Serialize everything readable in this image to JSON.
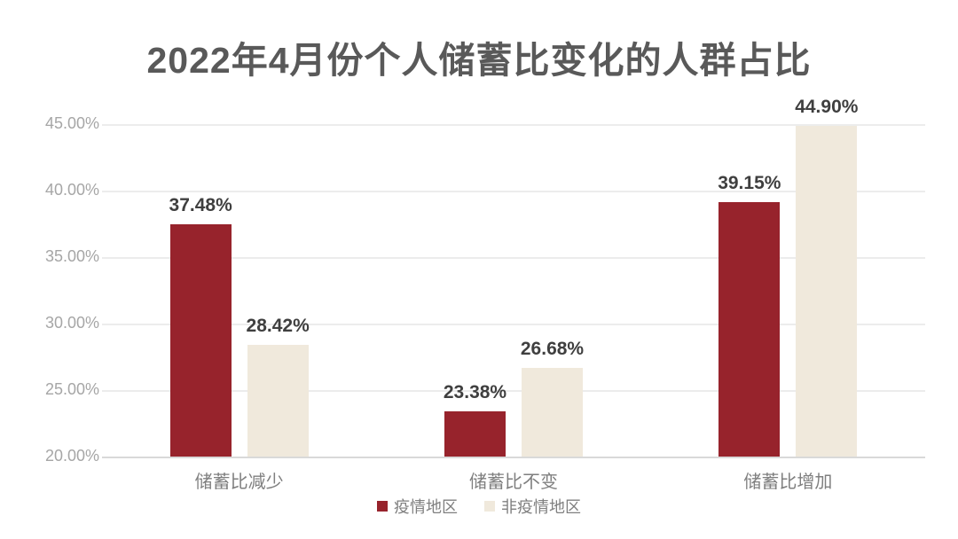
{
  "title": "2022年4月份个人储蓄比变化的人群占比",
  "colors": {
    "title_text": "#595959",
    "series_epidemic": "#97232C",
    "series_non_epidemic": "#F0E9DC",
    "data_label_text": "#3f3f3f",
    "axis_tick_text": "#a6a6a6",
    "category_text": "#7f7f7f",
    "gridline": "#ececec",
    "axis_line": "#d9d9d9",
    "background": "#ffffff"
  },
  "chart_data": {
    "type": "bar",
    "title": "2022年4月份个人储蓄比变化的人群占比",
    "categories": [
      "储蓄比减少",
      "储蓄比不变",
      "储蓄比增加"
    ],
    "series": [
      {
        "name": "疫情地区",
        "color": "#97232C",
        "values": [
          37.48,
          23.38,
          39.15
        ],
        "labels": [
          "37.48%",
          "23.38%",
          "39.15%"
        ]
      },
      {
        "name": "非疫情地区",
        "color": "#F0E9DC",
        "values": [
          28.42,
          26.68,
          44.9
        ],
        "labels": [
          "28.42%",
          "26.68%",
          "44.90%"
        ]
      }
    ],
    "xlabel": "",
    "ylabel": "",
    "y_axis": {
      "min": 20,
      "max": 45,
      "step": 5,
      "tick_values": [
        20,
        25,
        30,
        35,
        40,
        45
      ],
      "tick_labels": [
        "20.00%",
        "25.00%",
        "30.00%",
        "35.00%",
        "40.00%",
        "45.00%"
      ]
    },
    "value_suffix": "%",
    "grid": true,
    "legend_position": "bottom",
    "legend": [
      "疫情地区",
      "非疫情地区"
    ]
  }
}
